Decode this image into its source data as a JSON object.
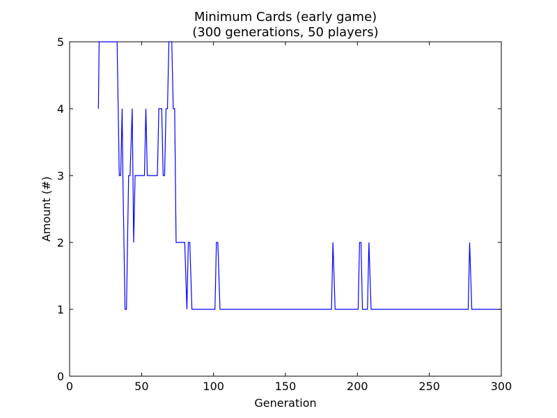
{
  "chart_data": {
    "type": "line",
    "title_lines": [
      "Minimum Cards (early game)",
      "(300 generations, 50 players)"
    ],
    "xlabel": "Generation",
    "ylabel": "Amount (#)",
    "xlim": [
      0,
      300
    ],
    "ylim": [
      0,
      5
    ],
    "xticks": [
      0,
      50,
      100,
      150,
      200,
      250,
      300
    ],
    "yticks": [
      0,
      1,
      2,
      3,
      4,
      5
    ],
    "grid": false,
    "series": [
      {
        "color": "#0000ff",
        "points": [
          [
            20,
            4
          ],
          [
            20.5,
            5
          ],
          [
            33,
            5
          ],
          [
            34.5,
            3
          ],
          [
            35.5,
            3
          ],
          [
            36.5,
            4
          ],
          [
            37,
            3
          ],
          [
            38.5,
            1
          ],
          [
            39.5,
            1
          ],
          [
            41,
            3
          ],
          [
            42,
            3
          ],
          [
            43.5,
            4
          ],
          [
            44.5,
            2
          ],
          [
            45.5,
            3
          ],
          [
            52,
            3
          ],
          [
            53,
            4
          ],
          [
            54,
            3
          ],
          [
            61,
            3
          ],
          [
            62,
            4
          ],
          [
            64,
            4
          ],
          [
            65,
            3
          ],
          [
            66,
            3
          ],
          [
            67,
            4
          ],
          [
            68,
            4
          ],
          [
            69,
            5
          ],
          [
            71,
            5
          ],
          [
            72,
            4
          ],
          [
            73,
            4
          ],
          [
            74,
            2
          ],
          [
            80,
            2
          ],
          [
            81.5,
            1
          ],
          [
            82.5,
            2
          ],
          [
            83.5,
            2
          ],
          [
            85,
            1
          ],
          [
            101,
            1
          ],
          [
            102,
            2
          ],
          [
            103,
            2
          ],
          [
            104.5,
            1
          ],
          [
            182,
            1
          ],
          [
            183,
            2
          ],
          [
            184.5,
            1
          ],
          [
            200.5,
            1
          ],
          [
            201.5,
            2
          ],
          [
            202.5,
            2
          ],
          [
            203.5,
            1
          ],
          [
            207,
            1
          ],
          [
            208,
            2
          ],
          [
            209.5,
            1
          ],
          [
            277,
            1
          ],
          [
            278,
            2
          ],
          [
            279.5,
            1
          ],
          [
            300,
            1
          ]
        ]
      }
    ]
  }
}
